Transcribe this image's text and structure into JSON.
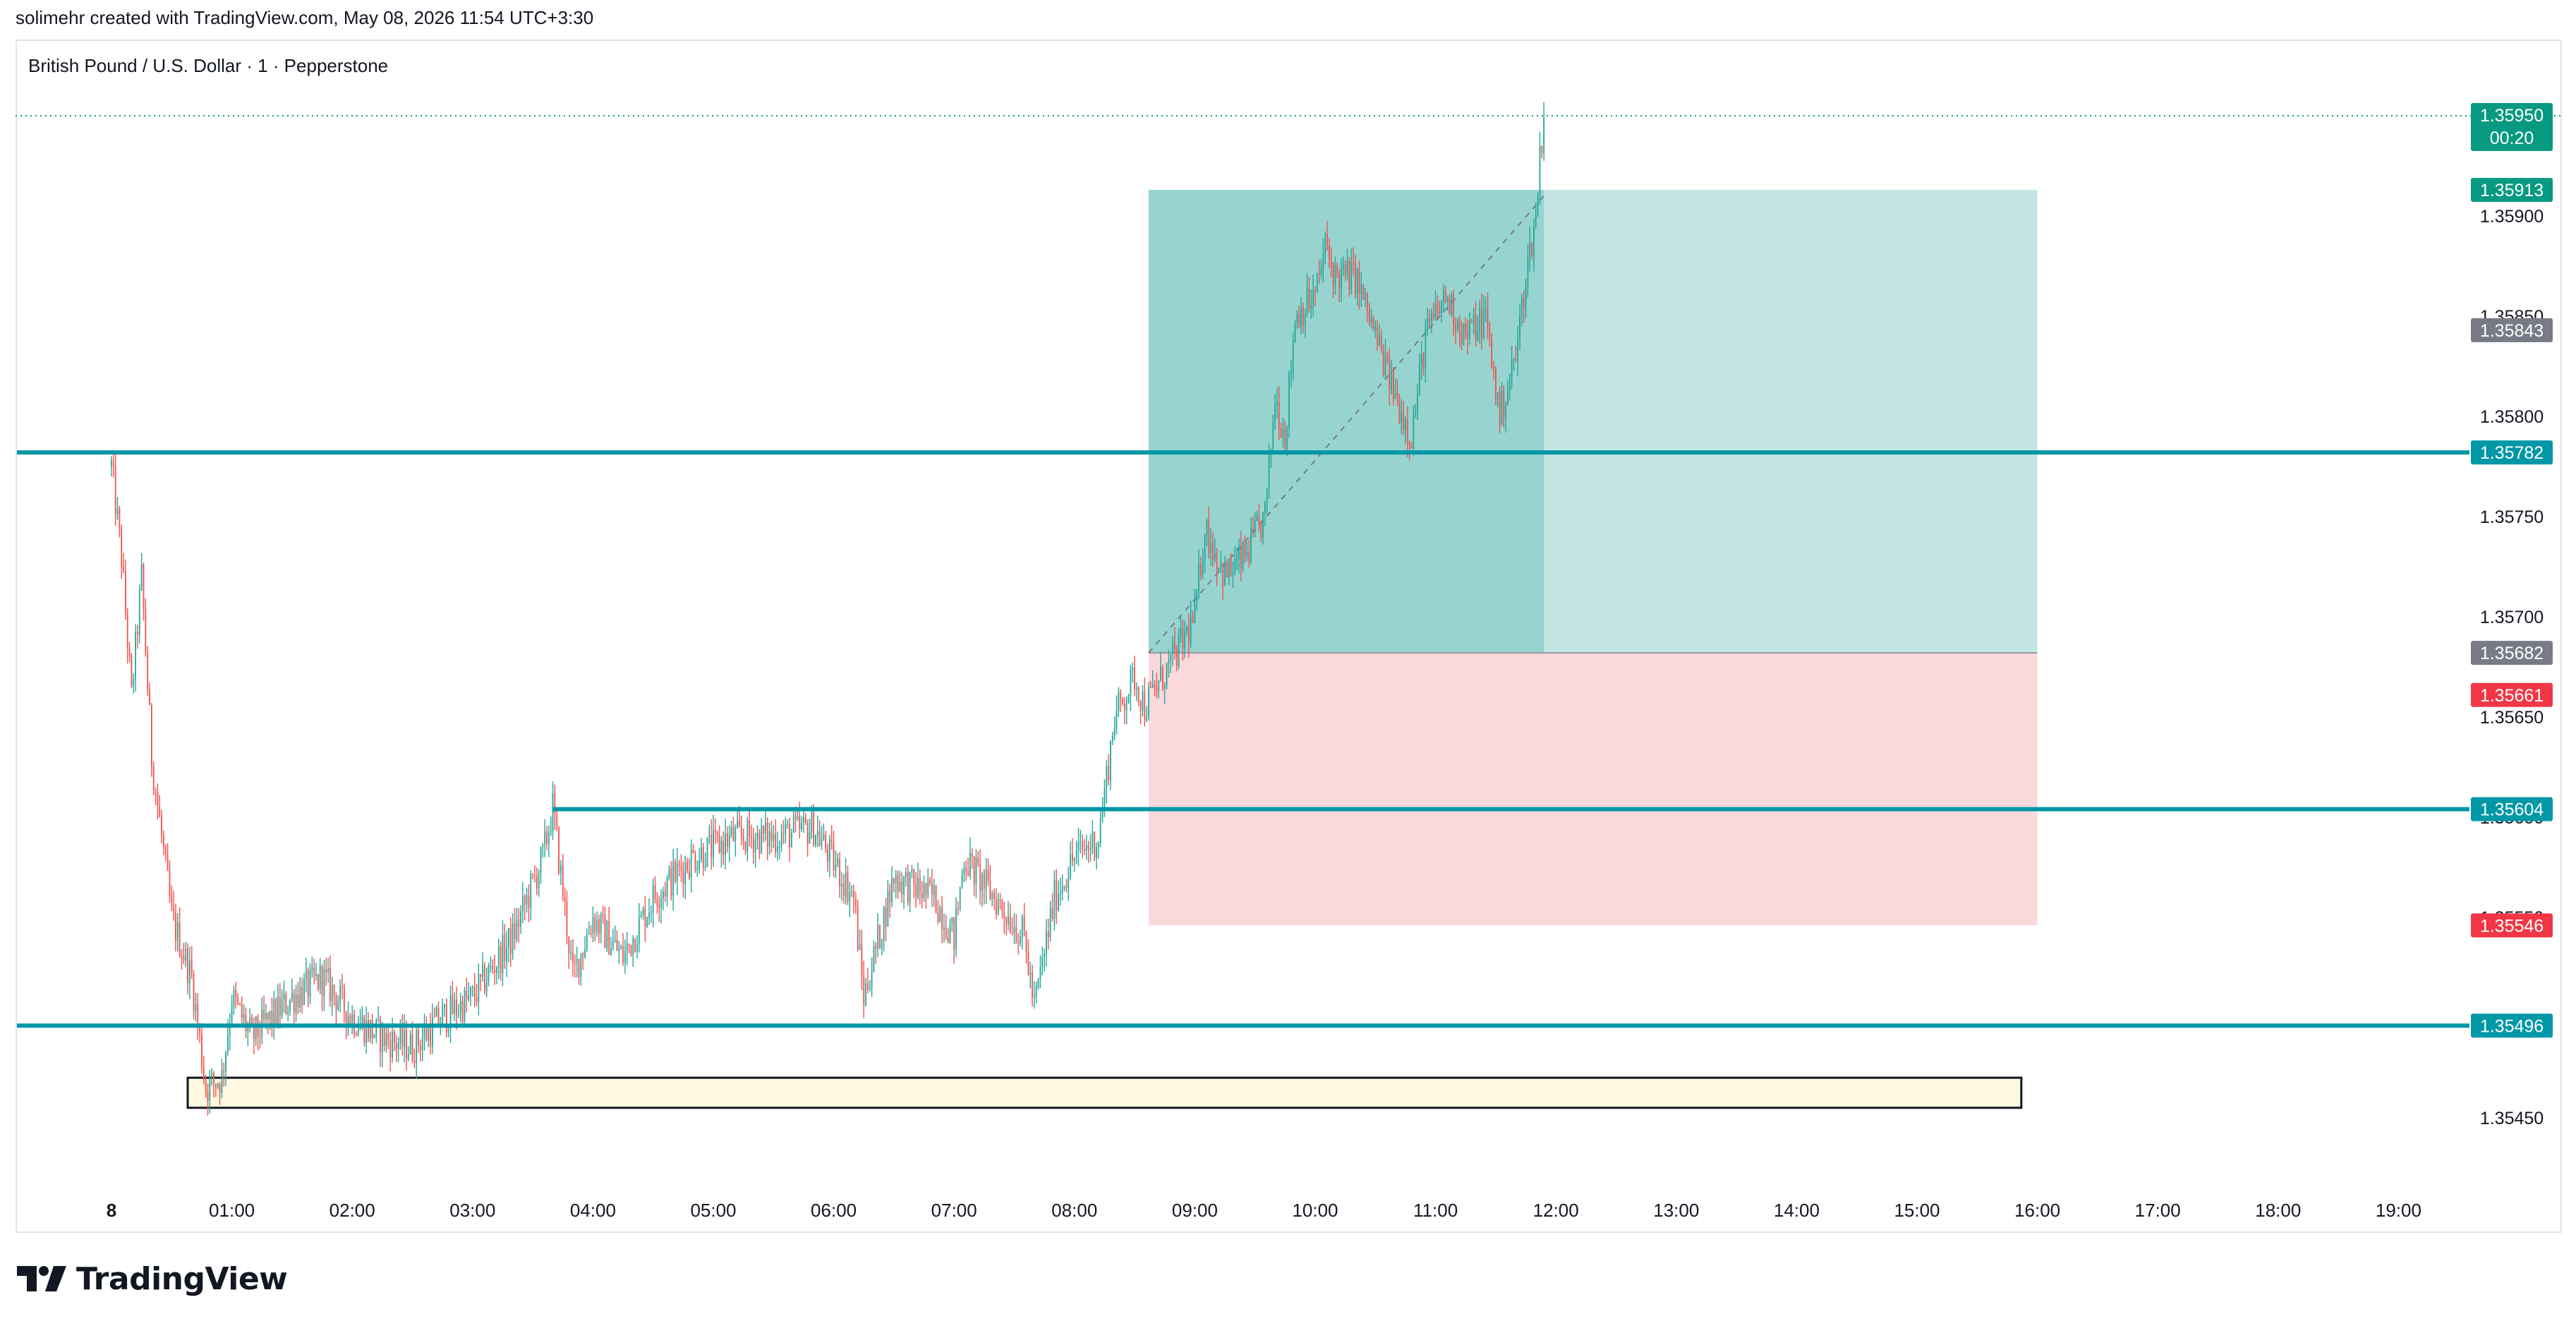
{
  "header": {
    "caption": "solimehr created with TradingView.com, May 08, 2026 11:54 UTC+3:30",
    "symbol": "British Pound / U.S. Dollar · 1 · Pepperstone"
  },
  "brand": {
    "logo_text": "TradingView",
    "logo_icon": "tradingview-logo-icon"
  },
  "colors": {
    "up": "#26a69a",
    "down": "#ef5350",
    "hline": "#0097a7",
    "target_zone": "#26a69a",
    "stop_zone": "#f7a9b1",
    "current_price": "#089981",
    "grey_label": "#787b86",
    "red_label": "#f23645",
    "rect_fill": "#fff8e1"
  },
  "chart_data": {
    "type": "candlestick",
    "symbol": "British Pound / U.S. Dollar",
    "timeframe": "1",
    "exchange": "Pepperstone",
    "x_ticks": [
      "8",
      "01:00",
      "02:00",
      "03:00",
      "04:00",
      "05:00",
      "06:00",
      "07:00",
      "08:00",
      "09:00",
      "10:00",
      "11:00",
      "12:00",
      "13:00",
      "14:00",
      "15:00",
      "16:00",
      "17:00",
      "18:00",
      "19:00"
    ],
    "y_ticks": [
      "1.35900",
      "1.35850",
      "1.35800",
      "1.35750",
      "1.35700",
      "1.35650",
      "1.35600",
      "1.35550",
      "1.35450"
    ],
    "ylim": [
      1.3541,
      1.36
    ],
    "price_path": [
      {
        "t": "00:00",
        "p": 1.35775
      },
      {
        "t": "00:05",
        "p": 1.3573
      },
      {
        "t": "00:10",
        "p": 1.3566
      },
      {
        "t": "00:15",
        "p": 1.3572
      },
      {
        "t": "00:20",
        "p": 1.3563
      },
      {
        "t": "00:30",
        "p": 1.3555
      },
      {
        "t": "00:40",
        "p": 1.3552
      },
      {
        "t": "00:47",
        "p": 1.35465
      },
      {
        "t": "00:55",
        "p": 1.3547
      },
      {
        "t": "01:00",
        "p": 1.3551
      },
      {
        "t": "01:10",
        "p": 1.3549
      },
      {
        "t": "01:30",
        "p": 1.3551
      },
      {
        "t": "01:45",
        "p": 1.3552
      },
      {
        "t": "02:00",
        "p": 1.355
      },
      {
        "t": "02:15",
        "p": 1.3549
      },
      {
        "t": "02:30",
        "p": 1.35485
      },
      {
        "t": "02:45",
        "p": 1.355
      },
      {
        "t": "03:00",
        "p": 1.3551
      },
      {
        "t": "03:20",
        "p": 1.3554
      },
      {
        "t": "03:35",
        "p": 1.3558
      },
      {
        "t": "03:40",
        "p": 1.35605
      },
      {
        "t": "03:50",
        "p": 1.3552
      },
      {
        "t": "04:00",
        "p": 1.3555
      },
      {
        "t": "04:15",
        "p": 1.3553
      },
      {
        "t": "04:30",
        "p": 1.3556
      },
      {
        "t": "04:50",
        "p": 1.3558
      },
      {
        "t": "05:10",
        "p": 1.3559
      },
      {
        "t": "05:30",
        "p": 1.3559
      },
      {
        "t": "05:50",
        "p": 1.35595
      },
      {
        "t": "06:10",
        "p": 1.3556
      },
      {
        "t": "06:15",
        "p": 1.3551
      },
      {
        "t": "06:30",
        "p": 1.3557
      },
      {
        "t": "06:50",
        "p": 1.3556
      },
      {
        "t": "07:00",
        "p": 1.3554
      },
      {
        "t": "07:05",
        "p": 1.3558
      },
      {
        "t": "07:20",
        "p": 1.3556
      },
      {
        "t": "07:35",
        "p": 1.3554
      },
      {
        "t": "07:40",
        "p": 1.35505
      },
      {
        "t": "07:50",
        "p": 1.3556
      },
      {
        "t": "08:00",
        "p": 1.3558
      },
      {
        "t": "08:12",
        "p": 1.3559
      },
      {
        "t": "08:20",
        "p": 1.3565
      },
      {
        "t": "08:30",
        "p": 1.3567
      },
      {
        "t": "08:35",
        "p": 1.35655
      },
      {
        "t": "08:50",
        "p": 1.3568
      },
      {
        "t": "09:00",
        "p": 1.357
      },
      {
        "t": "09:05",
        "p": 1.35745
      },
      {
        "t": "09:15",
        "p": 1.3572
      },
      {
        "t": "09:25",
        "p": 1.3573
      },
      {
        "t": "09:35",
        "p": 1.3575
      },
      {
        "t": "09:40",
        "p": 1.3581
      },
      {
        "t": "09:45",
        "p": 1.3579
      },
      {
        "t": "09:50",
        "p": 1.3585
      },
      {
        "t": "10:00",
        "p": 1.3586
      },
      {
        "t": "10:05",
        "p": 1.35885
      },
      {
        "t": "10:10",
        "p": 1.3587
      },
      {
        "t": "10:20",
        "p": 1.3587
      },
      {
        "t": "10:30",
        "p": 1.3584
      },
      {
        "t": "10:40",
        "p": 1.3581
      },
      {
        "t": "10:48",
        "p": 1.3579
      },
      {
        "t": "10:55",
        "p": 1.3584
      },
      {
        "t": "11:05",
        "p": 1.3586
      },
      {
        "t": "11:15",
        "p": 1.3584
      },
      {
        "t": "11:25",
        "p": 1.3585
      },
      {
        "t": "11:32",
        "p": 1.358
      },
      {
        "t": "11:40",
        "p": 1.3583
      },
      {
        "t": "11:45",
        "p": 1.3587
      },
      {
        "t": "11:50",
        "p": 1.359
      },
      {
        "t": "11:52",
        "p": 1.3593
      },
      {
        "t": "11:54",
        "p": 1.3595
      }
    ],
    "horizontal_lines": [
      {
        "price": "1.35782",
        "label": "1.35782"
      },
      {
        "price": "1.35604",
        "label": "1.35604"
      },
      {
        "price": "1.35496",
        "label": "1.35496"
      }
    ],
    "position": {
      "type": "long",
      "entry": "1.35682",
      "target": "1.35913",
      "stop": "1.35546",
      "start": "08:37",
      "end": "16:00",
      "current": "1.35843"
    },
    "marked_range": {
      "from": "00:38",
      "to": "15:52",
      "top": 1.3547,
      "bottom": 1.35455
    },
    "price_labels": {
      "current": "1.35950",
      "countdown": "00:20",
      "target": "1.35913",
      "position_current": "1.35843",
      "entry": "1.35682",
      "last_low": "1.35661",
      "stop": "1.35546"
    }
  }
}
